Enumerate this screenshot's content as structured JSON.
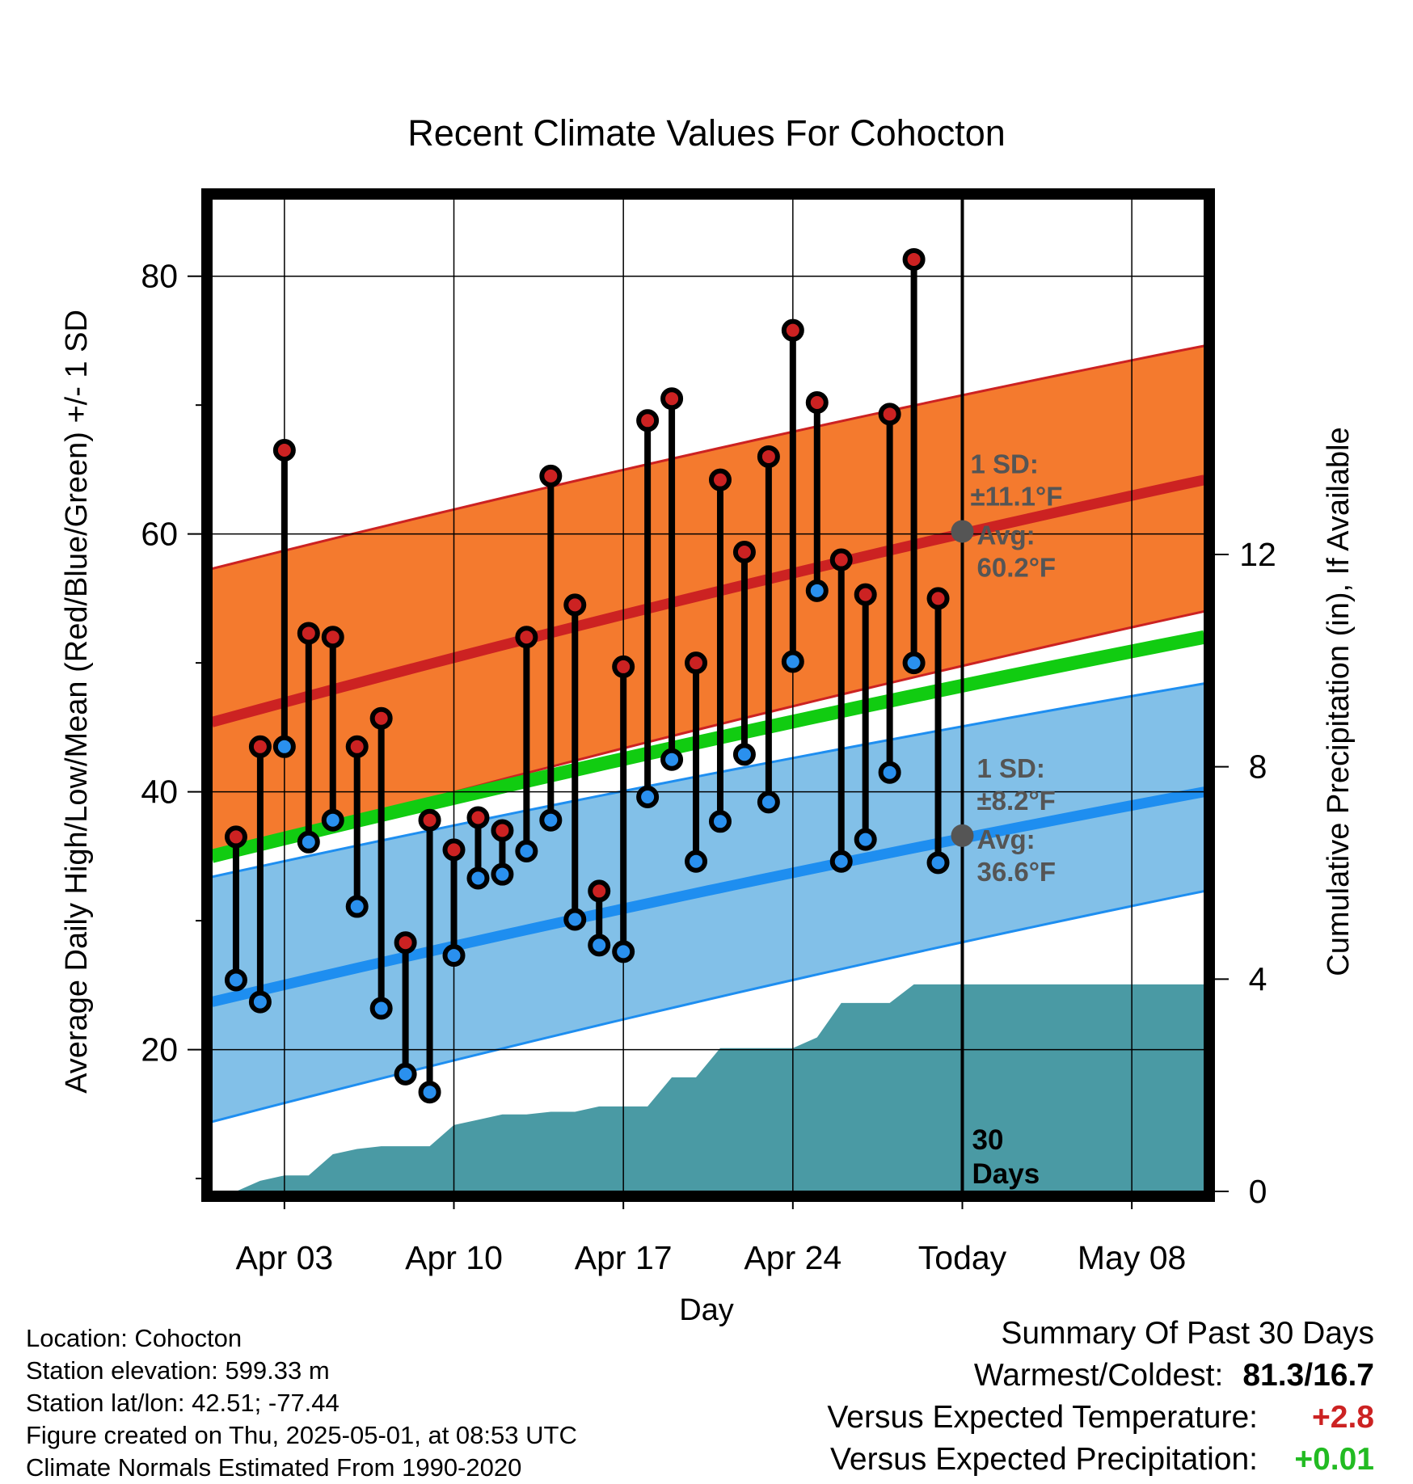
{
  "colors": {
    "high_point": "#cc2222",
    "low_point": "#2a90ee",
    "high_band": "#f47a2e",
    "high_mean": "#cc2222",
    "low_band": "#82c0e8",
    "low_mean": "#1e8ef0",
    "mean_line": "#11cc11",
    "precip": "#4a9aa4",
    "annotation": "#555555",
    "warm_delta": "#cc2222",
    "precip_delta": "#22bb22"
  },
  "chart_data": {
    "type": "line",
    "title": "Recent Climate Values For Cohocton",
    "xlabel": "Day",
    "ylabel": "Average Daily High/Low/Mean (Red/Blue/Green) +/- 1 SD",
    "y2label": "Cumulative Precipitation (in), If Available",
    "ylim": [
      9,
      86
    ],
    "y2lim": [
      0,
      18.7
    ],
    "xlim": [
      "2025-03-31",
      "2025-05-11"
    ],
    "x_ticks": [
      "Apr 03",
      "Apr 10",
      "Apr 17",
      "Apr 24",
      "Today",
      "May 08"
    ],
    "y_ticks": [
      20,
      40,
      60,
      80
    ],
    "y2_ticks": [
      0,
      4,
      8,
      12
    ],
    "grid": true,
    "today": "2025-05-01",
    "today_label": [
      "30",
      "Days"
    ],
    "dates": [
      "2025-04-01",
      "2025-04-02",
      "2025-04-03",
      "2025-04-04",
      "2025-04-05",
      "2025-04-06",
      "2025-04-07",
      "2025-04-08",
      "2025-04-09",
      "2025-04-10",
      "2025-04-11",
      "2025-04-12",
      "2025-04-13",
      "2025-04-14",
      "2025-04-15",
      "2025-04-16",
      "2025-04-17",
      "2025-04-18",
      "2025-04-19",
      "2025-04-20",
      "2025-04-21",
      "2025-04-22",
      "2025-04-23",
      "2025-04-24",
      "2025-04-25",
      "2025-04-26",
      "2025-04-27",
      "2025-04-28",
      "2025-04-29",
      "2025-04-30"
    ],
    "daily_high": [
      36.5,
      43.5,
      66.5,
      52.3,
      52.0,
      43.5,
      45.7,
      28.3,
      37.8,
      35.5,
      38.0,
      37.0,
      52.0,
      64.5,
      54.5,
      32.3,
      49.7,
      68.8,
      70.5,
      50.0,
      64.2,
      58.6,
      66.0,
      75.8,
      70.2,
      58.0,
      55.3,
      69.3,
      81.3,
      55.0
    ],
    "daily_low": [
      25.4,
      23.7,
      43.5,
      36.1,
      37.8,
      31.1,
      23.2,
      18.1,
      16.7,
      27.3,
      33.3,
      33.6,
      35.4,
      37.8,
      30.1,
      28.1,
      27.6,
      39.6,
      42.5,
      34.6,
      37.7,
      42.9,
      39.2,
      50.1,
      55.6,
      34.6,
      36.3,
      41.5,
      50.0,
      34.5
    ],
    "normals": {
      "dates": [
        "2025-03-31",
        "2025-05-11"
      ],
      "high_mean": [
        45.4,
        64.2
      ],
      "high_sd_upper": [
        57.3,
        74.6
      ],
      "high_sd_lower": [
        34.9,
        54.0
      ],
      "mean": [
        35.0,
        52.0
      ],
      "low_mean": [
        23.7,
        40.0
      ],
      "low_sd_upper": [
        33.4,
        48.4
      ],
      "low_sd_lower": [
        14.4,
        32.3
      ]
    },
    "precip_cumulative": {
      "dates": [
        "2025-03-31",
        "2025-04-01",
        "2025-04-02",
        "2025-04-03",
        "2025-04-04",
        "2025-04-05",
        "2025-04-06",
        "2025-04-07",
        "2025-04-08",
        "2025-04-09",
        "2025-04-10",
        "2025-04-11",
        "2025-04-12",
        "2025-04-13",
        "2025-04-14",
        "2025-04-15",
        "2025-04-16",
        "2025-04-17",
        "2025-04-18",
        "2025-04-19",
        "2025-04-20",
        "2025-04-21",
        "2025-04-22",
        "2025-04-23",
        "2025-04-24",
        "2025-04-25",
        "2025-04-26",
        "2025-04-27",
        "2025-04-28",
        "2025-04-29",
        "2025-04-30",
        "2025-05-01",
        "2025-05-11"
      ],
      "values": [
        0,
        0,
        0.2,
        0.3,
        0.3,
        0.7,
        0.8,
        0.85,
        0.85,
        0.85,
        1.25,
        1.35,
        1.45,
        1.45,
        1.5,
        1.5,
        1.6,
        1.6,
        1.6,
        2.15,
        2.15,
        2.7,
        2.7,
        2.7,
        2.7,
        2.9,
        3.55,
        3.55,
        3.55,
        3.9,
        3.9,
        3.9,
        3.9
      ]
    },
    "annotations": {
      "high_sd": "1 SD:",
      "high_sd_value": "±11.1°F",
      "high_avg": "Avg:",
      "high_avg_value": "60.2°F",
      "high_avg_point": 60.2,
      "low_sd": "1 SD:",
      "low_sd_value": "±8.2°F",
      "low_avg": "Avg:",
      "low_avg_value": "36.6°F",
      "low_avg_point": 36.6
    }
  },
  "footer": {
    "location": "Location: Cohocton",
    "elevation": "Station elevation: 599.33 m",
    "latlon": "Station lat/lon: 42.51; -77.44",
    "created": "Figure created on Thu, 2025-05-01, at 08:53 UTC",
    "normals": "Climate Normals Estimated From 1990-2020"
  },
  "summary": {
    "heading": "Summary Of Past 30 Days",
    "warmest_coldest_label": "Warmest/Coldest:",
    "warmest_coldest_value": "81.3/16.7",
    "temp_label": "Versus Expected Temperature:",
    "temp_value": "+2.8",
    "precip_label": "Versus Expected Precipitation:",
    "precip_value": "+0.01"
  }
}
